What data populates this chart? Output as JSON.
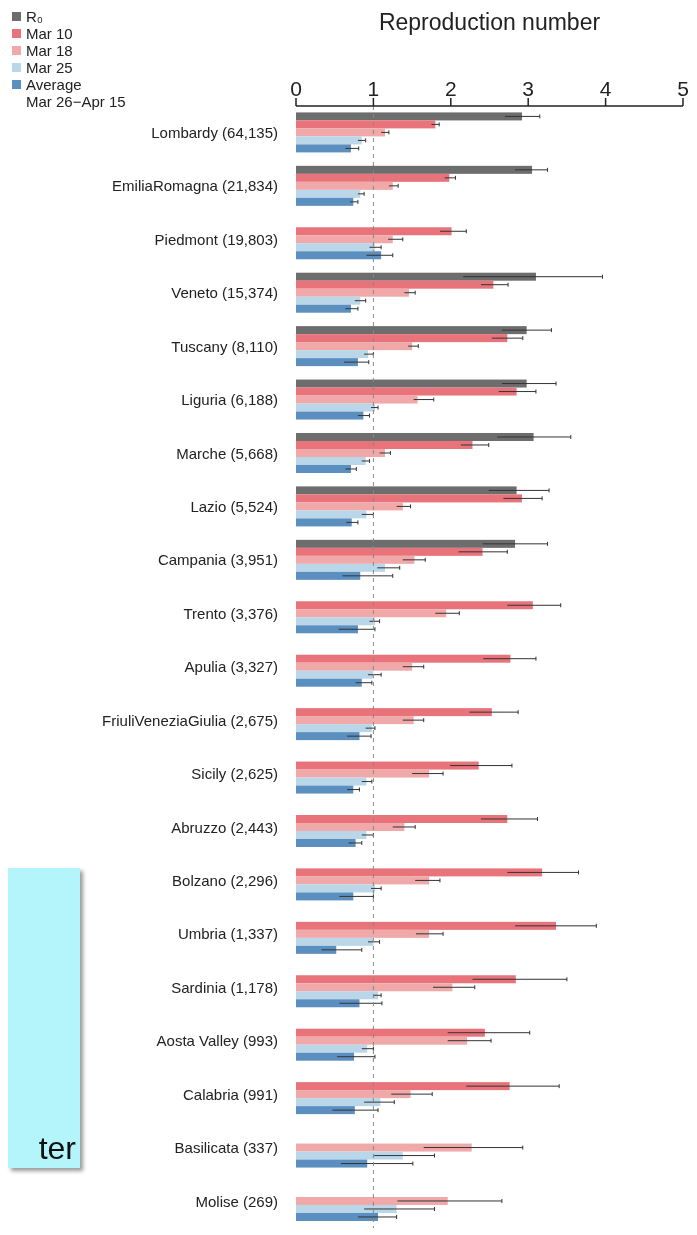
{
  "chart_data": {
    "type": "bar",
    "orientation": "horizontal",
    "xlabel": "Reproduction number",
    "categories": [
      "Lombardy (64,135)",
      "EmiliaRomagna (21,834)",
      "Piedmont (19,803)",
      "Veneto (15,374)",
      "Tuscany (8,110)",
      "Liguria (6,188)",
      "Marche (5,668)",
      "Lazio (5,524)",
      "Campania (3,951)",
      "Trento (3,376)",
      "Apulia (3,327)",
      "FriuliVeneziaGiulia (2,675)",
      "Sicily (2,625)",
      "Abruzzo (2,443)",
      "Bolzano (2,296)",
      "Umbria (1,337)",
      "Sardinia (1,178)",
      "Aosta Valley (993)",
      "Calabria (991)",
      "Basilicata (337)",
      "Molise (269)"
    ],
    "series": [
      {
        "name": "R₀",
        "color": "#6d6d6d",
        "values": [
          2.92,
          3.05,
          null,
          3.1,
          2.98,
          2.98,
          3.07,
          2.85,
          2.83,
          null,
          null,
          null,
          null,
          null,
          null,
          null,
          null,
          null,
          null,
          null,
          null
        ],
        "errors": [
          [
            2.7,
            3.15
          ],
          [
            2.83,
            3.25
          ],
          null,
          [
            2.16,
            3.96
          ],
          [
            2.66,
            3.3
          ],
          [
            2.66,
            3.36
          ],
          [
            2.6,
            3.55
          ],
          [
            2.49,
            3.27
          ],
          [
            2.41,
            3.25
          ],
          null,
          null,
          null,
          null,
          null,
          null,
          null,
          null,
          null,
          null,
          null,
          null
        ]
      },
      {
        "name": "Mar 10",
        "color": "#e8737a",
        "values": [
          1.8,
          1.98,
          2.01,
          2.55,
          2.73,
          2.85,
          2.28,
          2.92,
          2.41,
          3.06,
          2.77,
          2.53,
          2.36,
          2.73,
          3.18,
          3.36,
          2.84,
          2.44,
          2.76,
          null,
          null
        ],
        "errors": [
          [
            1.75,
            1.85
          ],
          [
            1.92,
            2.06
          ],
          [
            1.86,
            2.2
          ],
          [
            2.39,
            2.74
          ],
          [
            2.53,
            2.93
          ],
          [
            2.62,
            3.1
          ],
          [
            2.13,
            2.49
          ],
          [
            2.68,
            3.18
          ],
          [
            2.1,
            2.73
          ],
          [
            2.73,
            3.42
          ],
          [
            2.42,
            3.1
          ],
          [
            2.24,
            2.87
          ],
          [
            1.99,
            2.79
          ],
          [
            2.39,
            3.12
          ],
          [
            2.73,
            3.65
          ],
          [
            2.83,
            3.88
          ],
          [
            2.28,
            3.5
          ],
          [
            1.96,
            3.02
          ],
          [
            2.2,
            3.4
          ],
          null,
          null
        ]
      },
      {
        "name": "Mar 18",
        "color": "#f0a8a8",
        "values": [
          1.15,
          1.25,
          1.25,
          1.46,
          1.5,
          1.57,
          1.15,
          1.38,
          1.53,
          1.94,
          1.5,
          1.52,
          1.72,
          1.4,
          1.72,
          1.72,
          2.02,
          2.21,
          1.48,
          2.27,
          1.96
        ],
        "errors": [
          [
            1.1,
            1.2
          ],
          [
            1.2,
            1.32
          ],
          [
            1.19,
            1.38
          ],
          [
            1.4,
            1.54
          ],
          [
            1.45,
            1.58
          ],
          [
            1.52,
            1.78
          ],
          [
            1.08,
            1.22
          ],
          [
            1.3,
            1.48
          ],
          [
            1.38,
            1.67
          ],
          [
            1.8,
            2.11
          ],
          [
            1.38,
            1.65
          ],
          [
            1.38,
            1.65
          ],
          [
            1.5,
            1.9
          ],
          [
            1.25,
            1.54
          ],
          [
            1.54,
            1.86
          ],
          [
            1.55,
            1.9
          ],
          [
            1.77,
            2.31
          ],
          [
            1.96,
            2.52
          ],
          [
            1.23,
            1.76
          ],
          [
            1.65,
            2.93
          ],
          [
            1.31,
            2.66
          ]
        ]
      },
      {
        "name": "Mar 25",
        "color": "#b9d7e8",
        "values": [
          0.85,
          0.83,
          1.02,
          0.83,
          0.93,
          1.02,
          0.9,
          0.91,
          1.15,
          1.02,
          1.0,
          0.98,
          0.91,
          0.91,
          1.02,
          1.0,
          1.06,
          0.92,
          1.09,
          1.38,
          1.3
        ],
        "errors": [
          [
            0.8,
            0.9
          ],
          [
            0.8,
            0.88
          ],
          [
            0.95,
            1.1
          ],
          [
            0.76,
            0.9
          ],
          [
            0.88,
            1.0
          ],
          [
            0.97,
            1.06
          ],
          [
            0.85,
            0.95
          ],
          [
            0.85,
            1.0
          ],
          [
            1.05,
            1.34
          ],
          [
            0.95,
            1.08
          ],
          [
            0.93,
            1.1
          ],
          [
            0.9,
            1.02
          ],
          [
            0.85,
            0.98
          ],
          [
            0.85,
            1.0
          ],
          [
            0.97,
            1.1
          ],
          [
            0.93,
            1.08
          ],
          [
            1.0,
            1.1
          ],
          [
            0.85,
            1.0
          ],
          [
            0.88,
            1.27
          ],
          [
            1.01,
            1.79
          ],
          [
            0.88,
            1.79
          ]
        ]
      },
      {
        "name": "Average\nMar 26−Apr 15",
        "color": "#5b8fbf",
        "values": [
          0.71,
          0.74,
          1.1,
          0.71,
          0.8,
          0.87,
          0.71,
          0.72,
          0.83,
          0.8,
          0.85,
          0.82,
          0.74,
          0.77,
          0.74,
          0.52,
          0.82,
          0.75,
          0.76,
          0.92,
          1.06
        ],
        "errors": [
          [
            0.64,
            0.81
          ],
          [
            0.7,
            0.8
          ],
          [
            0.91,
            1.25
          ],
          [
            0.64,
            0.8
          ],
          [
            0.62,
            0.94
          ],
          [
            0.8,
            0.95
          ],
          [
            0.64,
            0.78
          ],
          [
            0.65,
            0.8
          ],
          [
            0.6,
            1.25
          ],
          [
            0.55,
            1.02
          ],
          [
            0.77,
            0.98
          ],
          [
            0.66,
            0.97
          ],
          [
            0.66,
            0.82
          ],
          [
            0.68,
            0.85
          ],
          [
            0.56,
            1.0
          ],
          [
            0.33,
            0.85
          ],
          [
            0.56,
            1.11
          ],
          [
            0.53,
            1.02
          ],
          [
            0.47,
            1.06
          ],
          [
            0.58,
            1.51
          ],
          [
            0.8,
            1.3
          ]
        ]
      }
    ],
    "xlim": [
      0,
      5
    ],
    "xticks": [
      0,
      1,
      2,
      3,
      4,
      5
    ],
    "ref_lines": [
      {
        "axis": "x",
        "value": 1,
        "color": "#888888",
        "line_style": "dashed"
      }
    ],
    "legend": "top left",
    "annotations": [
      "ter"
    ]
  }
}
